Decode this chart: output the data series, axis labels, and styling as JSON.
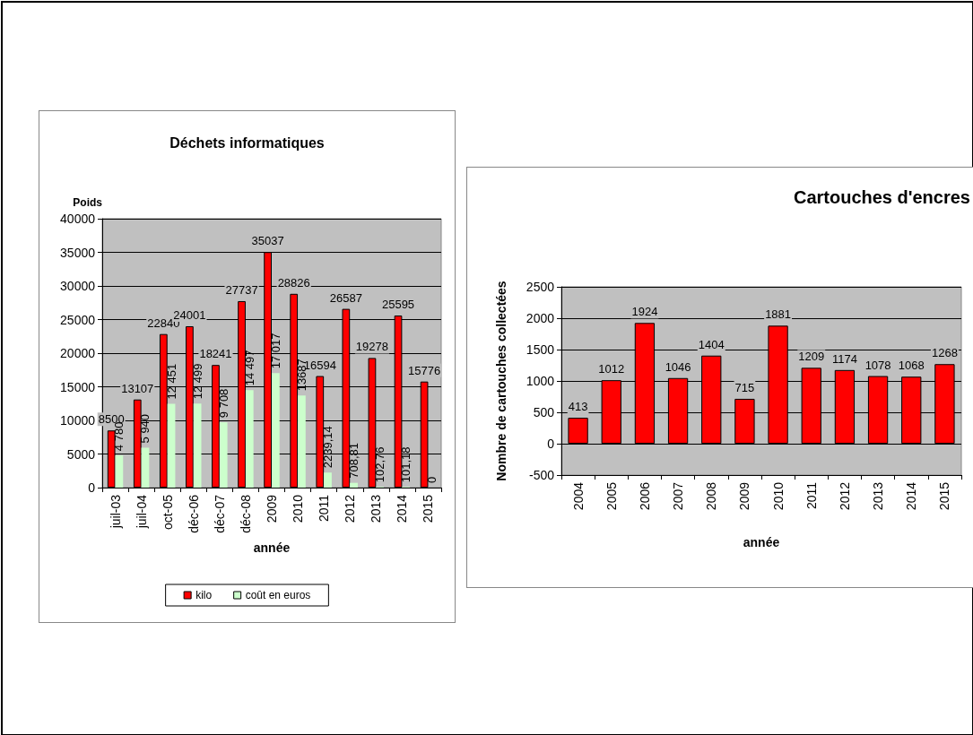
{
  "chart_data": [
    {
      "type": "bar",
      "title": "Déchets informatiques",
      "xlabel": "année",
      "ylabel": "Poids",
      "categories": [
        "juil-03",
        "juil-04",
        "oct-05",
        "déc-06",
        "déc-07",
        "déc-08",
        "2009",
        "2010",
        "2011",
        "2012",
        "2013",
        "2014",
        "2015"
      ],
      "series": [
        {
          "name": "kilo",
          "color": "#ff0000",
          "values": [
            8500,
            13107,
            22840,
            24001,
            18241,
            27737,
            35037,
            28826,
            16594,
            26587,
            19278,
            25595,
            15776
          ],
          "value_labels": [
            "8500",
            "13107",
            "22840",
            "24001",
            "18241",
            "27737",
            "35037",
            "28826",
            "16594",
            "26587",
            "19278",
            "25595",
            "15776"
          ]
        },
        {
          "name": "coût en euros",
          "color": "#ccffcc",
          "values": [
            4780,
            5940,
            12451,
            12499,
            9708,
            14497,
            17017,
            13687,
            2239.14,
            708.81,
            102.76,
            101.18,
            0
          ],
          "value_labels": [
            "4 780",
            "5 940",
            "12 451",
            "12 499",
            "9 708",
            "14 497",
            "17 017",
            "13687",
            "2239,14",
            "708,81",
            "102,76",
            "101,18",
            "0"
          ]
        }
      ],
      "ylim": [
        0,
        40000
      ],
      "yticks": [
        0,
        5000,
        10000,
        15000,
        20000,
        25000,
        30000,
        35000,
        40000
      ],
      "grid": "y",
      "legend": "bottom"
    },
    {
      "type": "bar",
      "title": "Cartouches d'encres",
      "xlabel": "année",
      "ylabel": "Nombre de cartouches collectées",
      "categories": [
        "2004",
        "2005",
        "2006",
        "2007",
        "2008",
        "2009",
        "2010",
        "2011",
        "2012",
        "2013",
        "2014",
        "2015"
      ],
      "series": [
        {
          "color": "#ff0000",
          "values": [
            413,
            1012,
            1924,
            1046,
            1404,
            715,
            1881,
            1209,
            1174,
            1078,
            1068,
            1268
          ]
        }
      ],
      "data_labels": true,
      "ylim": [
        -500,
        2500
      ],
      "yticks": [
        -500,
        0,
        500,
        1000,
        1500,
        2000,
        2500
      ],
      "grid": "y"
    }
  ]
}
